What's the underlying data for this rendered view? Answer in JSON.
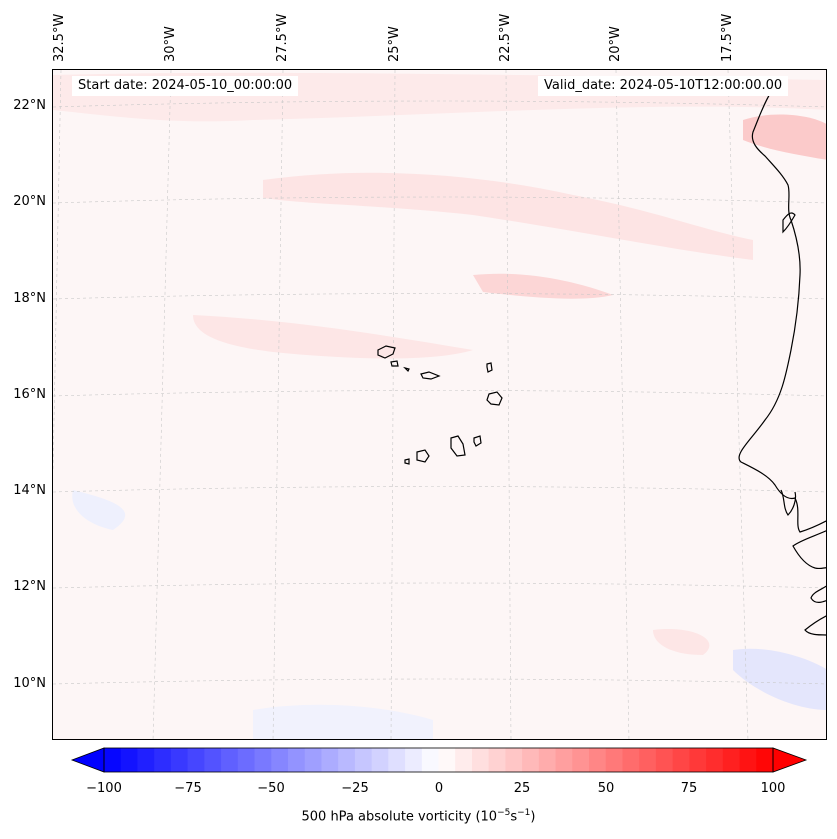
{
  "header": {
    "start_date": "Start date: 2024-05-10_00:00:00",
    "valid_date": "Valid_date: 2024-05-10T12:00:00.00"
  },
  "longitude_labels": [
    "32.5°W",
    "30°W",
    "27.5°W",
    "25°W",
    "22.5°W",
    "20°W",
    "17.5°W"
  ],
  "latitude_labels": [
    "22°N",
    "20°N",
    "18°N",
    "16°N",
    "14°N",
    "12°N",
    "10°N"
  ],
  "colorbar": {
    "ticks": [
      "−100",
      "−75",
      "−50",
      "−25",
      "0",
      "25",
      "50",
      "75",
      "100"
    ],
    "label_prefix": "500 hPa absolute vorticity (10",
    "label_sup1": "−5",
    "label_mid": "s",
    "label_sup2": "−1",
    "label_suffix": ")",
    "range": [
      -100,
      100
    ],
    "step": 5,
    "color_min": "#0000ff",
    "color_zero": "#ffffff",
    "color_max": "#ff0000"
  },
  "map": {
    "field": "500 hPa absolute vorticity",
    "background_color": "#fdf6f6",
    "coastline_color": "#000000",
    "gridline_color": "#c8c8c8",
    "features": [
      "cape-verde-islands",
      "west-africa-coastline"
    ]
  }
}
